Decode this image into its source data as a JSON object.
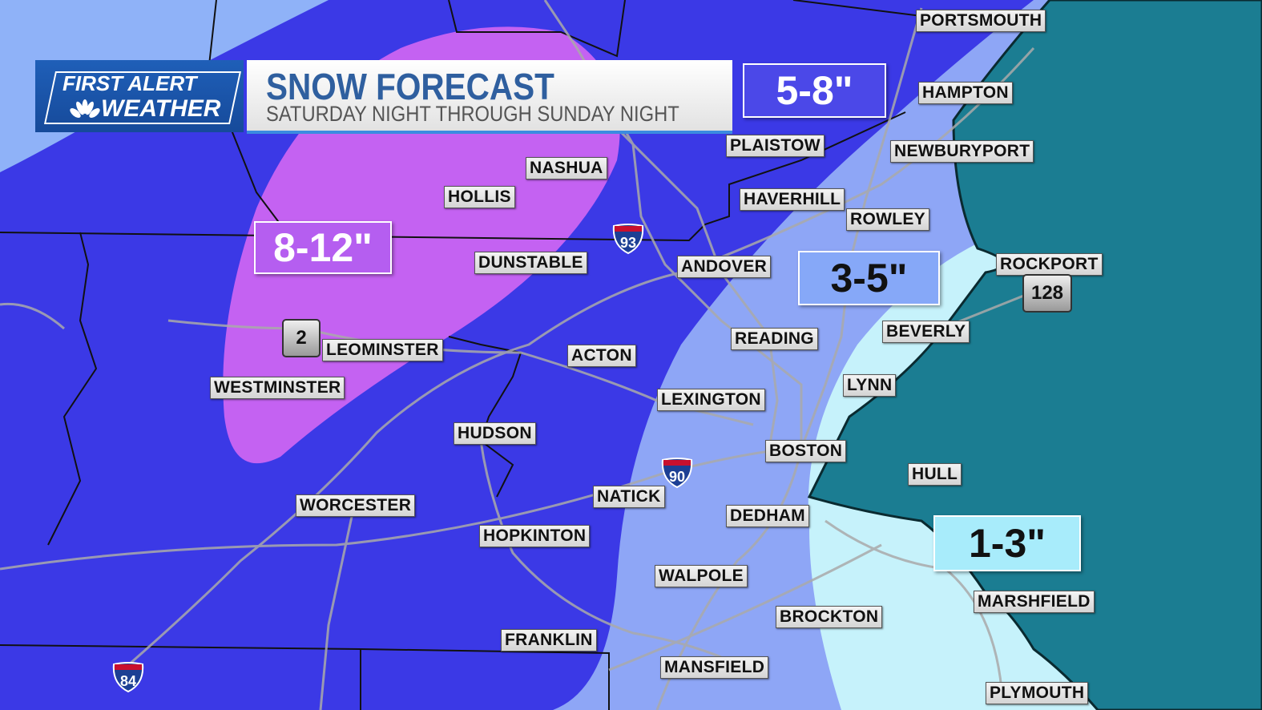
{
  "header": {
    "logo_line1": "FIRST ALERT",
    "logo_line2": "WEATHER",
    "title": "SNOW FORECAST",
    "subtitle": "SATURDAY NIGHT THROUGH SUNDAY NIGHT"
  },
  "legend_colors": {
    "8-12": "#c462f2",
    "5-8": "#3b39e6",
    "3-5": "#8ea6f6",
    "1-3": "#c6f2fb",
    "ocean": "#1b7d92",
    "outer": "#8fb2f8"
  },
  "amounts": [
    {
      "label": "5-8\"",
      "color": "#4b48e8",
      "text_color": "#ffffff"
    },
    {
      "label": "8-12\"",
      "color": "#b55ef0",
      "text_color": "#ffffff"
    },
    {
      "label": "3-5\"",
      "color": "#86a8f8",
      "text_color": "#111111"
    },
    {
      "label": "1-3\"",
      "color": "#a8ecfb",
      "text_color": "#111111"
    }
  ],
  "towns": [
    "PORTSMOUTH",
    "HAMPTON",
    "PLAISTOW",
    "NEWBURYPORT",
    "NASHUA",
    "HAVERHILL",
    "HOLLIS",
    "ROWLEY",
    "DUNSTABLE",
    "ANDOVER",
    "ROCKPORT",
    "READING",
    "BEVERLY",
    "LEOMINSTER",
    "ACTON",
    "WESTMINSTER",
    "LEXINGTON",
    "LYNN",
    "HUDSON",
    "BOSTON",
    "HULL",
    "NATICK",
    "WORCESTER",
    "DEDHAM",
    "HOPKINTON",
    "WALPOLE",
    "MARSHFIELD",
    "BROCKTON",
    "FRANKLIN",
    "MANSFIELD",
    "PLYMOUTH"
  ],
  "highways": {
    "interstates": [
      "93",
      "90",
      "84"
    ],
    "routes": [
      "2",
      "128"
    ]
  }
}
